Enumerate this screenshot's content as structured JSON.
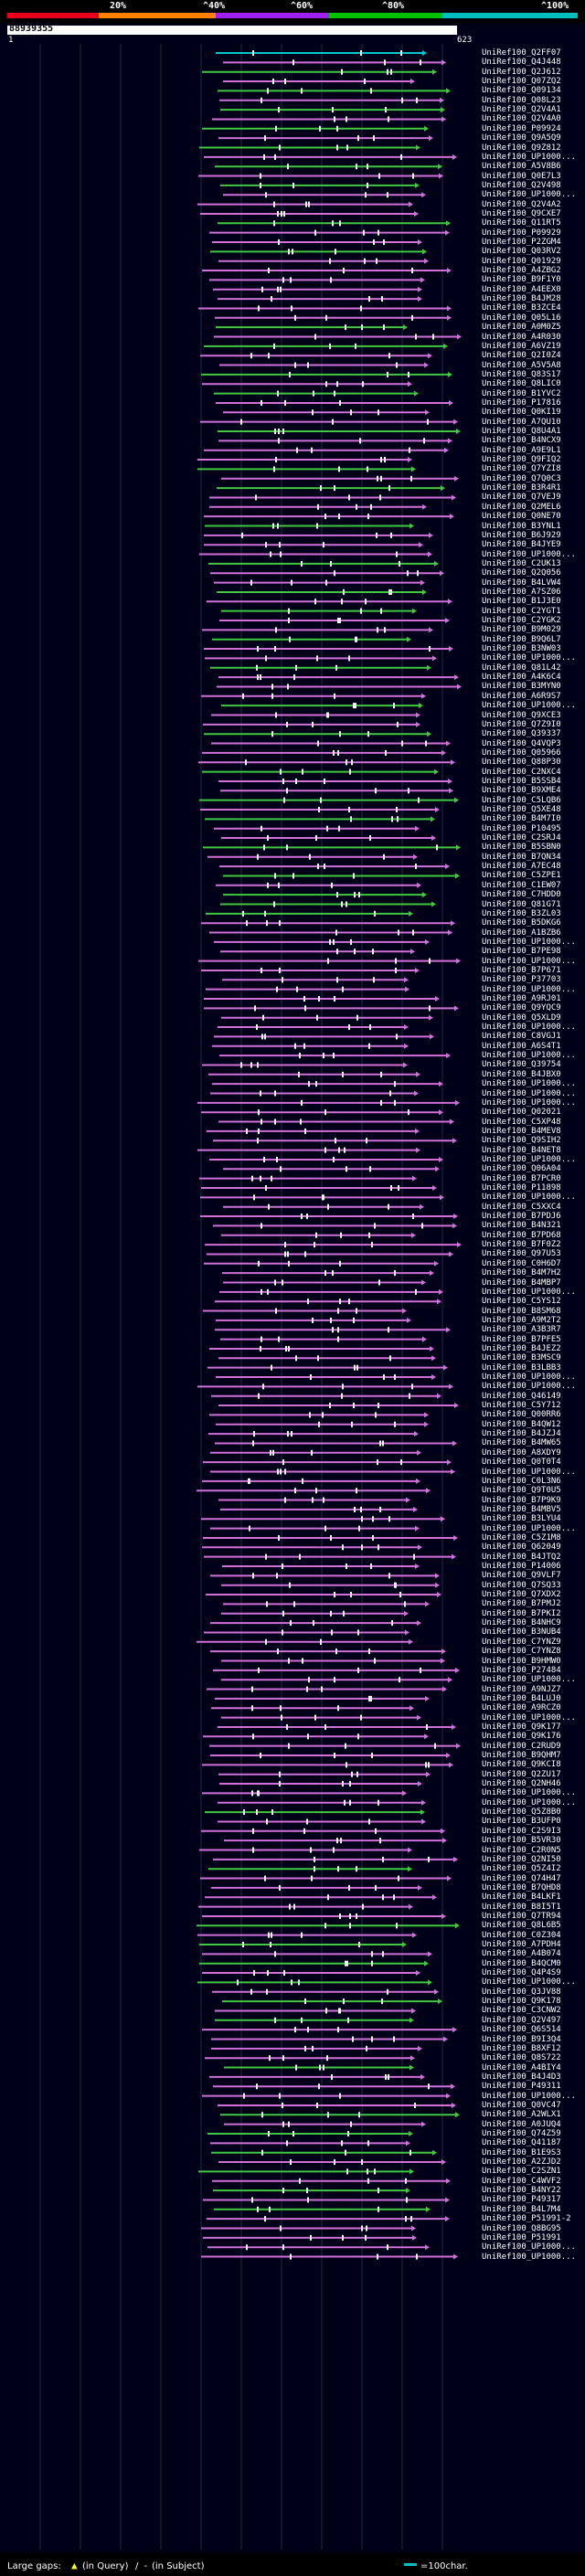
{
  "legend": {
    "pcts": [
      "20%",
      "^40%",
      "^60%",
      "^80%",
      "^100%"
    ],
    "colors": [
      "#e8001c",
      "#ff7f00",
      "#a020f0",
      "#00c000",
      "#00bfbf"
    ]
  },
  "query": {
    "id": "88939355",
    "start": "1",
    "end": "623"
  },
  "hits": [
    {
      "label": "UniRef100_Q2FF07",
      "color": "#00c8d0"
    },
    {
      "label": "UniRef100_Q4J448",
      "color": "#d070d8"
    },
    {
      "label": "UniRef100_Q2J612",
      "color": "#40c840"
    },
    {
      "label": "UniRef100_Q07ZQ2",
      "color": "#d070d8"
    },
    {
      "label": "UniRef100_Q09134",
      "color": "#40c840"
    },
    {
      "label": "UniRef100_Q08L23",
      "color": "#d070d8"
    },
    {
      "label": "UniRef100_Q2V4A1",
      "color": "#40c840"
    },
    {
      "label": "UniRef100_Q2V4A0",
      "color": "#d070d8"
    },
    {
      "label": "UniRef100_P09924",
      "color": "#40c840"
    },
    {
      "label": "UniRef100_Q9A5Q9",
      "color": "#d070d8"
    },
    {
      "label": "UniRef100_Q9Z812",
      "color": "#40c840"
    },
    {
      "label": "UniRef100_UP1000...",
      "color": "#d070d8"
    },
    {
      "label": "UniRef100_A5V8B6",
      "color": "#40c840"
    },
    {
      "label": "UniRef100_Q0E7L3",
      "color": "#d070d8"
    },
    {
      "label": "UniRef100_Q2V498",
      "color": "#40c840"
    },
    {
      "label": "UniRef100_UP1000...",
      "color": "#d070d8"
    },
    {
      "label": "UniRef100_Q2V4A2",
      "color": "#d070d8"
    },
    {
      "label": "UniRef100_Q9CXE7",
      "color": "#d070d8"
    },
    {
      "label": "UniRef100_Q11RT5",
      "color": "#40c840"
    },
    {
      "label": "UniRef100_P09929",
      "color": "#d070d8"
    },
    {
      "label": "UniRef100_P2ZGM4",
      "color": "#d070d8"
    },
    {
      "label": "UniRef100_Q03RV2",
      "color": "#40c840"
    },
    {
      "label": "UniRef100_Q01929",
      "color": "#d070d8"
    },
    {
      "label": "UniRef100_A4ZBG2",
      "color": "#d070d8"
    },
    {
      "label": "UniRef100_B9F1Y0",
      "color": "#d070d8"
    },
    {
      "label": "UniRef100_A4EEX0",
      "color": "#d070d8"
    },
    {
      "label": "UniRef100_B4JM28",
      "color": "#d070d8"
    },
    {
      "label": "UniRef100_B3ZCE4",
      "color": "#d070d8"
    },
    {
      "label": "UniRef100_Q05L16",
      "color": "#d070d8"
    },
    {
      "label": "UniRef100_A0M0Z5",
      "color": "#40c840"
    },
    {
      "label": "UniRef100_A4R030",
      "color": "#d070d8"
    },
    {
      "label": "UniRef100_A6VZ19",
      "color": "#40c840"
    },
    {
      "label": "UniRef100_Q2I0Z4",
      "color": "#d070d8"
    },
    {
      "label": "UniRef100_A5V5A8",
      "color": "#d070d8"
    },
    {
      "label": "UniRef100_Q83S17",
      "color": "#40c840"
    },
    {
      "label": "UniRef100_Q8LIC0",
      "color": "#d070d8"
    },
    {
      "label": "UniRef100_B1YVC2",
      "color": "#40c840"
    },
    {
      "label": "UniRef100_P17816",
      "color": "#d070d8"
    },
    {
      "label": "UniRef100_Q0KI19",
      "color": "#d070d8"
    },
    {
      "label": "UniRef100_A7QU10",
      "color": "#d070d8"
    },
    {
      "label": "UniRef100_Q8U4A1",
      "color": "#40c840"
    },
    {
      "label": "UniRef100_B4NCX9",
      "color": "#d070d8"
    },
    {
      "label": "UniRef100_A9E9L1",
      "color": "#d070d8"
    },
    {
      "label": "UniRef100_Q9FIQ2",
      "color": "#d070d8"
    },
    {
      "label": "UniRef100_Q7YZI8",
      "color": "#40c840"
    },
    {
      "label": "UniRef100_Q7Q0C3",
      "color": "#d070d8"
    },
    {
      "label": "UniRef100_B3R4R1",
      "color": "#40c840"
    },
    {
      "label": "UniRef100_Q7VEJ9",
      "color": "#d070d8"
    },
    {
      "label": "UniRef100_Q2MEL6",
      "color": "#d070d8"
    },
    {
      "label": "UniRef100_Q0NE70",
      "color": "#d070d8"
    },
    {
      "label": "UniRef100_B3YNL1",
      "color": "#40c840"
    },
    {
      "label": "UniRef100_B6J929",
      "color": "#d070d8"
    },
    {
      "label": "UniRef100_B4JYE9",
      "color": "#d070d8"
    },
    {
      "label": "UniRef100_UP1000...",
      "color": "#d070d8"
    },
    {
      "label": "UniRef100_C2UK13",
      "color": "#40c840"
    },
    {
      "label": "UniRef100_Q2Q056",
      "color": "#d070d8"
    },
    {
      "label": "UniRef100_B4LVW4",
      "color": "#d070d8"
    },
    {
      "label": "UniRef100_A7SZ06",
      "color": "#40c840"
    },
    {
      "label": "UniRef100_B1J3E0",
      "color": "#d070d8"
    },
    {
      "label": "UniRef100_C2YGT1",
      "color": "#40c840"
    },
    {
      "label": "UniRef100_C2YGK2",
      "color": "#d070d8"
    },
    {
      "label": "UniRef100_B9M029",
      "color": "#d070d8"
    },
    {
      "label": "UniRef100_B9Q6L7",
      "color": "#40c840"
    },
    {
      "label": "UniRef100_B3NW03",
      "color": "#d070d8"
    },
    {
      "label": "UniRef100_UP1000...",
      "color": "#d070d8"
    },
    {
      "label": "UniRef100_Q81L42",
      "color": "#40c840"
    },
    {
      "label": "UniRef100_A4K6C4",
      "color": "#d070d8"
    },
    {
      "label": "UniRef100_B3MYN0",
      "color": "#d070d8"
    },
    {
      "label": "UniRef100_A6R9S7",
      "color": "#d070d8"
    },
    {
      "label": "UniRef100_UP1000...",
      "color": "#40c840"
    },
    {
      "label": "UniRef100_Q9XCE3",
      "color": "#d070d8"
    },
    {
      "label": "UniRef100_Q7Z9I0",
      "color": "#d070d8"
    },
    {
      "label": "UniRef100_Q39337",
      "color": "#40c840"
    },
    {
      "label": "UniRef100_Q4VQP3",
      "color": "#d070d8"
    },
    {
      "label": "UniRef100_Q05966",
      "color": "#d070d8"
    },
    {
      "label": "UniRef100_Q88P30",
      "color": "#d070d8"
    },
    {
      "label": "UniRef100_C2NXC4",
      "color": "#40c840"
    },
    {
      "label": "UniRef100_B5SSB4",
      "color": "#d070d8"
    },
    {
      "label": "UniRef100_B9XME4",
      "color": "#d070d8"
    },
    {
      "label": "UniRef100_C5LQB6",
      "color": "#40c840"
    },
    {
      "label": "UniRef100_Q5XE48",
      "color": "#d070d8"
    },
    {
      "label": "UniRef100_B4M7I0",
      "color": "#40c840"
    },
    {
      "label": "UniRef100_P10495",
      "color": "#d070d8"
    },
    {
      "label": "UniRef100_C2SRJ4",
      "color": "#d070d8"
    },
    {
      "label": "UniRef100_B5SBN0",
      "color": "#40c840"
    },
    {
      "label": "UniRef100_B7QN34",
      "color": "#d070d8"
    },
    {
      "label": "UniRef100_A7EC48",
      "color": "#d070d8"
    },
    {
      "label": "UniRef100_C5ZPE1",
      "color": "#40c840"
    },
    {
      "label": "UniRef100_C1EW07",
      "color": "#d070d8"
    },
    {
      "label": "UniRef100_C7HDD0",
      "color": "#40c840"
    },
    {
      "label": "UniRef100_Q81G71",
      "color": "#40c840"
    },
    {
      "label": "UniRef100_B3ZL03",
      "color": "#40c840"
    },
    {
      "label": "UniRef100_B5DKG6",
      "color": "#d070d8"
    },
    {
      "label": "UniRef100_A1BZB6",
      "color": "#d070d8"
    },
    {
      "label": "UniRef100_UP1000...",
      "color": "#d070d8"
    },
    {
      "label": "UniRef100_B7PE98",
      "color": "#d070d8"
    },
    {
      "label": "UniRef100_UP1000...",
      "color": "#d070d8"
    },
    {
      "label": "UniRef100_B7P671",
      "color": "#d070d8"
    },
    {
      "label": "UniRef100_P37703",
      "color": "#d070d8"
    },
    {
      "label": "UniRef100_UP1000...",
      "color": "#d070d8"
    },
    {
      "label": "UniRef100_A9RJ01",
      "color": "#d070d8"
    },
    {
      "label": "UniRef100_Q9YQC9",
      "color": "#d070d8"
    },
    {
      "label": "UniRef100_Q5XLD9",
      "color": "#d070d8"
    },
    {
      "label": "UniRef100_UP1000...",
      "color": "#d070d8"
    },
    {
      "label": "UniRef100_C8VGJ1",
      "color": "#d070d8"
    },
    {
      "label": "UniRef100_A6S4T1",
      "color": "#d070d8"
    },
    {
      "label": "UniRef100_UP1000...",
      "color": "#d070d8"
    },
    {
      "label": "UniRef100_Q39754",
      "color": "#d070d8"
    },
    {
      "label": "UniRef100_B4JBX0",
      "color": "#d070d8"
    },
    {
      "label": "UniRef100_UP1000...",
      "color": "#d070d8"
    },
    {
      "label": "UniRef100_UP1000...",
      "color": "#d070d8"
    },
    {
      "label": "UniRef100_UP1000...",
      "color": "#d070d8"
    },
    {
      "label": "UniRef100_Q02021",
      "color": "#d070d8"
    },
    {
      "label": "UniRef100_C5XP48",
      "color": "#d070d8"
    },
    {
      "label": "UniRef100_B4MEV8",
      "color": "#d070d8"
    },
    {
      "label": "UniRef100_Q9SIH2",
      "color": "#d070d8"
    },
    {
      "label": "UniRef100_B4NET8",
      "color": "#d070d8"
    },
    {
      "label": "UniRef100_UP1000...",
      "color": "#d070d8"
    },
    {
      "label": "UniRef100_Q06A04",
      "color": "#d070d8"
    },
    {
      "label": "UniRef100_B7PCR0",
      "color": "#d070d8"
    },
    {
      "label": "UniRef100_P11898",
      "color": "#d070d8"
    },
    {
      "label": "UniRef100_UP1000...",
      "color": "#d070d8"
    },
    {
      "label": "UniRef100_C5XXC4",
      "color": "#d070d8"
    },
    {
      "label": "UniRef100_B7PDJ6",
      "color": "#d070d8"
    },
    {
      "label": "UniRef100_B4N321",
      "color": "#d070d8"
    },
    {
      "label": "UniRef100_B7PD68",
      "color": "#d070d8"
    },
    {
      "label": "UniRef100_B7F0Z2",
      "color": "#d070d8"
    },
    {
      "label": "UniRef100_Q97U53",
      "color": "#d070d8"
    },
    {
      "label": "UniRef100_C0H6D7",
      "color": "#d070d8"
    },
    {
      "label": "UniRef100_B4M7H2",
      "color": "#d070d8"
    },
    {
      "label": "UniRef100_B4MBP7",
      "color": "#d070d8"
    },
    {
      "label": "UniRef100_UP1000...",
      "color": "#d070d8"
    },
    {
      "label": "UniRef100_C5YS12",
      "color": "#d070d8"
    },
    {
      "label": "UniRef100_B8SM68",
      "color": "#d070d8"
    },
    {
      "label": "UniRef100_A9M2T2",
      "color": "#d070d8"
    },
    {
      "label": "UniRef100_A3B3R7",
      "color": "#d070d8"
    },
    {
      "label": "UniRef100_B7PFE5",
      "color": "#d070d8"
    },
    {
      "label": "UniRef100_B4JEZ2",
      "color": "#d070d8"
    },
    {
      "label": "UniRef100_B3MSC9",
      "color": "#d070d8"
    },
    {
      "label": "UniRef100_B3LBB3",
      "color": "#d070d8"
    },
    {
      "label": "UniRef100_UP1000...",
      "color": "#d070d8"
    },
    {
      "label": "UniRef100_UP1000...",
      "color": "#d070d8"
    },
    {
      "label": "UniRef100_Q46149",
      "color": "#d070d8"
    },
    {
      "label": "UniRef100_C5Y712",
      "color": "#d070d8"
    },
    {
      "label": "UniRef100_Q00RR6",
      "color": "#d070d8"
    },
    {
      "label": "UniRef100_B4QW12",
      "color": "#d070d8"
    },
    {
      "label": "UniRef100_B4JZJ4",
      "color": "#d070d8"
    },
    {
      "label": "UniRef100_B4MW65",
      "color": "#d070d8"
    },
    {
      "label": "UniRef100_A8XDY9",
      "color": "#d070d8"
    },
    {
      "label": "UniRef100_Q0T0T4",
      "color": "#d070d8"
    },
    {
      "label": "UniRef100_UP1000...",
      "color": "#d070d8"
    },
    {
      "label": "UniRef100_C0L3N6",
      "color": "#d070d8"
    },
    {
      "label": "UniRef100_Q9T0U5",
      "color": "#d070d8"
    },
    {
      "label": "UniRef100_B7P9K9",
      "color": "#d070d8"
    },
    {
      "label": "UniRef100_B4MBV5",
      "color": "#d070d8"
    },
    {
      "label": "UniRef100_B3LYU4",
      "color": "#d070d8"
    },
    {
      "label": "UniRef100_UP1000...",
      "color": "#d070d8"
    },
    {
      "label": "UniRef100_C5Z1M8",
      "color": "#d070d8"
    },
    {
      "label": "UniRef100_Q62049",
      "color": "#d070d8"
    },
    {
      "label": "UniRef100_B4JTQ2",
      "color": "#d070d8"
    },
    {
      "label": "UniRef100_P14006",
      "color": "#d070d8"
    },
    {
      "label": "UniRef100_Q9VLF7",
      "color": "#d070d8"
    },
    {
      "label": "UniRef100_Q7SQ33",
      "color": "#d070d8"
    },
    {
      "label": "UniRef100_Q7XDX2",
      "color": "#d070d8"
    },
    {
      "label": "UniRef100_B7PMJ2",
      "color": "#d070d8"
    },
    {
      "label": "UniRef100_B7PKI2",
      "color": "#d070d8"
    },
    {
      "label": "UniRef100_B4NHC9",
      "color": "#d070d8"
    },
    {
      "label": "UniRef100_B3NUB4",
      "color": "#d070d8"
    },
    {
      "label": "UniRef100_C7YNZ9",
      "color": "#d070d8"
    },
    {
      "label": "UniRef100_C7YNZ8",
      "color": "#d070d8"
    },
    {
      "label": "UniRef100_B9HMW0",
      "color": "#d070d8"
    },
    {
      "label": "UniRef100_P27484",
      "color": "#d070d8"
    },
    {
      "label": "UniRef100_UP1000...",
      "color": "#d070d8"
    },
    {
      "label": "UniRef100_A9NJZ7",
      "color": "#d070d8"
    },
    {
      "label": "UniRef100_B4LUJ0",
      "color": "#d070d8"
    },
    {
      "label": "UniRef100_A9RCZ0",
      "color": "#d070d8"
    },
    {
      "label": "UniRef100_UP1000...",
      "color": "#d070d8"
    },
    {
      "label": "UniRef100_Q9K177",
      "color": "#d070d8"
    },
    {
      "label": "UniRef100_Q9K176",
      "color": "#d070d8"
    },
    {
      "label": "UniRef100_C2RUD9",
      "color": "#d070d8"
    },
    {
      "label": "UniRef100_B9QHM7",
      "color": "#d070d8"
    },
    {
      "label": "UniRef100_Q9KCI8",
      "color": "#d070d8"
    },
    {
      "label": "UniRef100_Q2ZU17",
      "color": "#d070d8"
    },
    {
      "label": "UniRef100_Q2NH46",
      "color": "#d070d8"
    },
    {
      "label": "UniRef100_UP1000...",
      "color": "#d070d8"
    },
    {
      "label": "UniRef100_UP1000...",
      "color": "#d070d8"
    },
    {
      "label": "UniRef100_Q5Z8B0",
      "color": "#40c840"
    },
    {
      "label": "UniRef100_B3UFP0",
      "color": "#d070d8"
    },
    {
      "label": "UniRef100_C2S9I3",
      "color": "#d070d8"
    },
    {
      "label": "UniRef100_B5VR30",
      "color": "#d070d8"
    },
    {
      "label": "UniRef100_C2R0N5",
      "color": "#d070d8"
    },
    {
      "label": "UniRef100_Q2NI50",
      "color": "#d070d8"
    },
    {
      "label": "UniRef100_Q5Z4I2",
      "color": "#40c840"
    },
    {
      "label": "UniRef100_Q74H47",
      "color": "#d070d8"
    },
    {
      "label": "UniRef100_B7QHD8",
      "color": "#d070d8"
    },
    {
      "label": "UniRef100_B4LKF1",
      "color": "#d070d8"
    },
    {
      "label": "UniRef100_B8I5T1",
      "color": "#d070d8"
    },
    {
      "label": "UniRef100_Q7TR94",
      "color": "#d070d8"
    },
    {
      "label": "UniRef100_Q8L6B5",
      "color": "#40c840"
    },
    {
      "label": "UniRef100_C0Z304",
      "color": "#d070d8"
    },
    {
      "label": "UniRef100_A7PDH4",
      "color": "#40c840"
    },
    {
      "label": "UniRef100_A4B074",
      "color": "#d070d8"
    },
    {
      "label": "UniRef100_B4QCM0",
      "color": "#40c840"
    },
    {
      "label": "UniRef100_Q4P4S9",
      "color": "#d070d8"
    },
    {
      "label": "UniRef100_UP1000...",
      "color": "#40c840"
    },
    {
      "label": "UniRef100_Q3JV88",
      "color": "#d070d8"
    },
    {
      "label": "UniRef100_Q9K178",
      "color": "#40c840"
    },
    {
      "label": "UniRef100_C3CNW2",
      "color": "#d070d8"
    },
    {
      "label": "UniRef100_Q2V497",
      "color": "#40c840"
    },
    {
      "label": "UniRef100_Q6S514",
      "color": "#d070d8"
    },
    {
      "label": "UniRef100_B9I3Q4",
      "color": "#d070d8"
    },
    {
      "label": "UniRef100_B8XF12",
      "color": "#d070d8"
    },
    {
      "label": "UniRef100_Q8S722",
      "color": "#d070d8"
    },
    {
      "label": "UniRef100_A4BIY4",
      "color": "#40c840"
    },
    {
      "label": "UniRef100_B4J4D3",
      "color": "#d070d8"
    },
    {
      "label": "UniRef100_P49311",
      "color": "#d070d8"
    },
    {
      "label": "UniRef100_UP1000...",
      "color": "#d070d8"
    },
    {
      "label": "UniRef100_Q0VC47",
      "color": "#d070d8"
    },
    {
      "label": "UniRef100_A2WLX1",
      "color": "#40c840"
    },
    {
      "label": "UniRef100_A0JUQ4",
      "color": "#d070d8"
    },
    {
      "label": "UniRef100_Q74Z59",
      "color": "#40c840"
    },
    {
      "label": "UniRef100_Q41187",
      "color": "#d070d8"
    },
    {
      "label": "UniRef100_B1E9S3",
      "color": "#40c840"
    },
    {
      "label": "UniRef100_A2ZJD2",
      "color": "#d070d8"
    },
    {
      "label": "UniRef100_C2SZN1",
      "color": "#40c840"
    },
    {
      "label": "UniRef100_C4WVF2",
      "color": "#d070d8"
    },
    {
      "label": "UniRef100_B4NY22",
      "color": "#40c840"
    },
    {
      "label": "UniRef100_P49317",
      "color": "#d070d8"
    },
    {
      "label": "UniRef100_B4L7M4",
      "color": "#40c840"
    },
    {
      "label": "UniRef100_P51991-2",
      "color": "#d070d8"
    },
    {
      "label": "UniRef100_Q8BG95",
      "color": "#d070d8"
    },
    {
      "label": "UniRef100_P51991",
      "color": "#d070d8"
    },
    {
      "label": "UniRef100_UP1000...",
      "color": "#d070d8"
    },
    {
      "label": "UniRef100_UP1000...",
      "color": "#d070d8"
    }
  ],
  "footer": {
    "gaps_label": "Large gaps:",
    "in_query": "(in Query)",
    "in_subject": "(in Subject)",
    "slash": "/",
    "scale": "=100char."
  }
}
